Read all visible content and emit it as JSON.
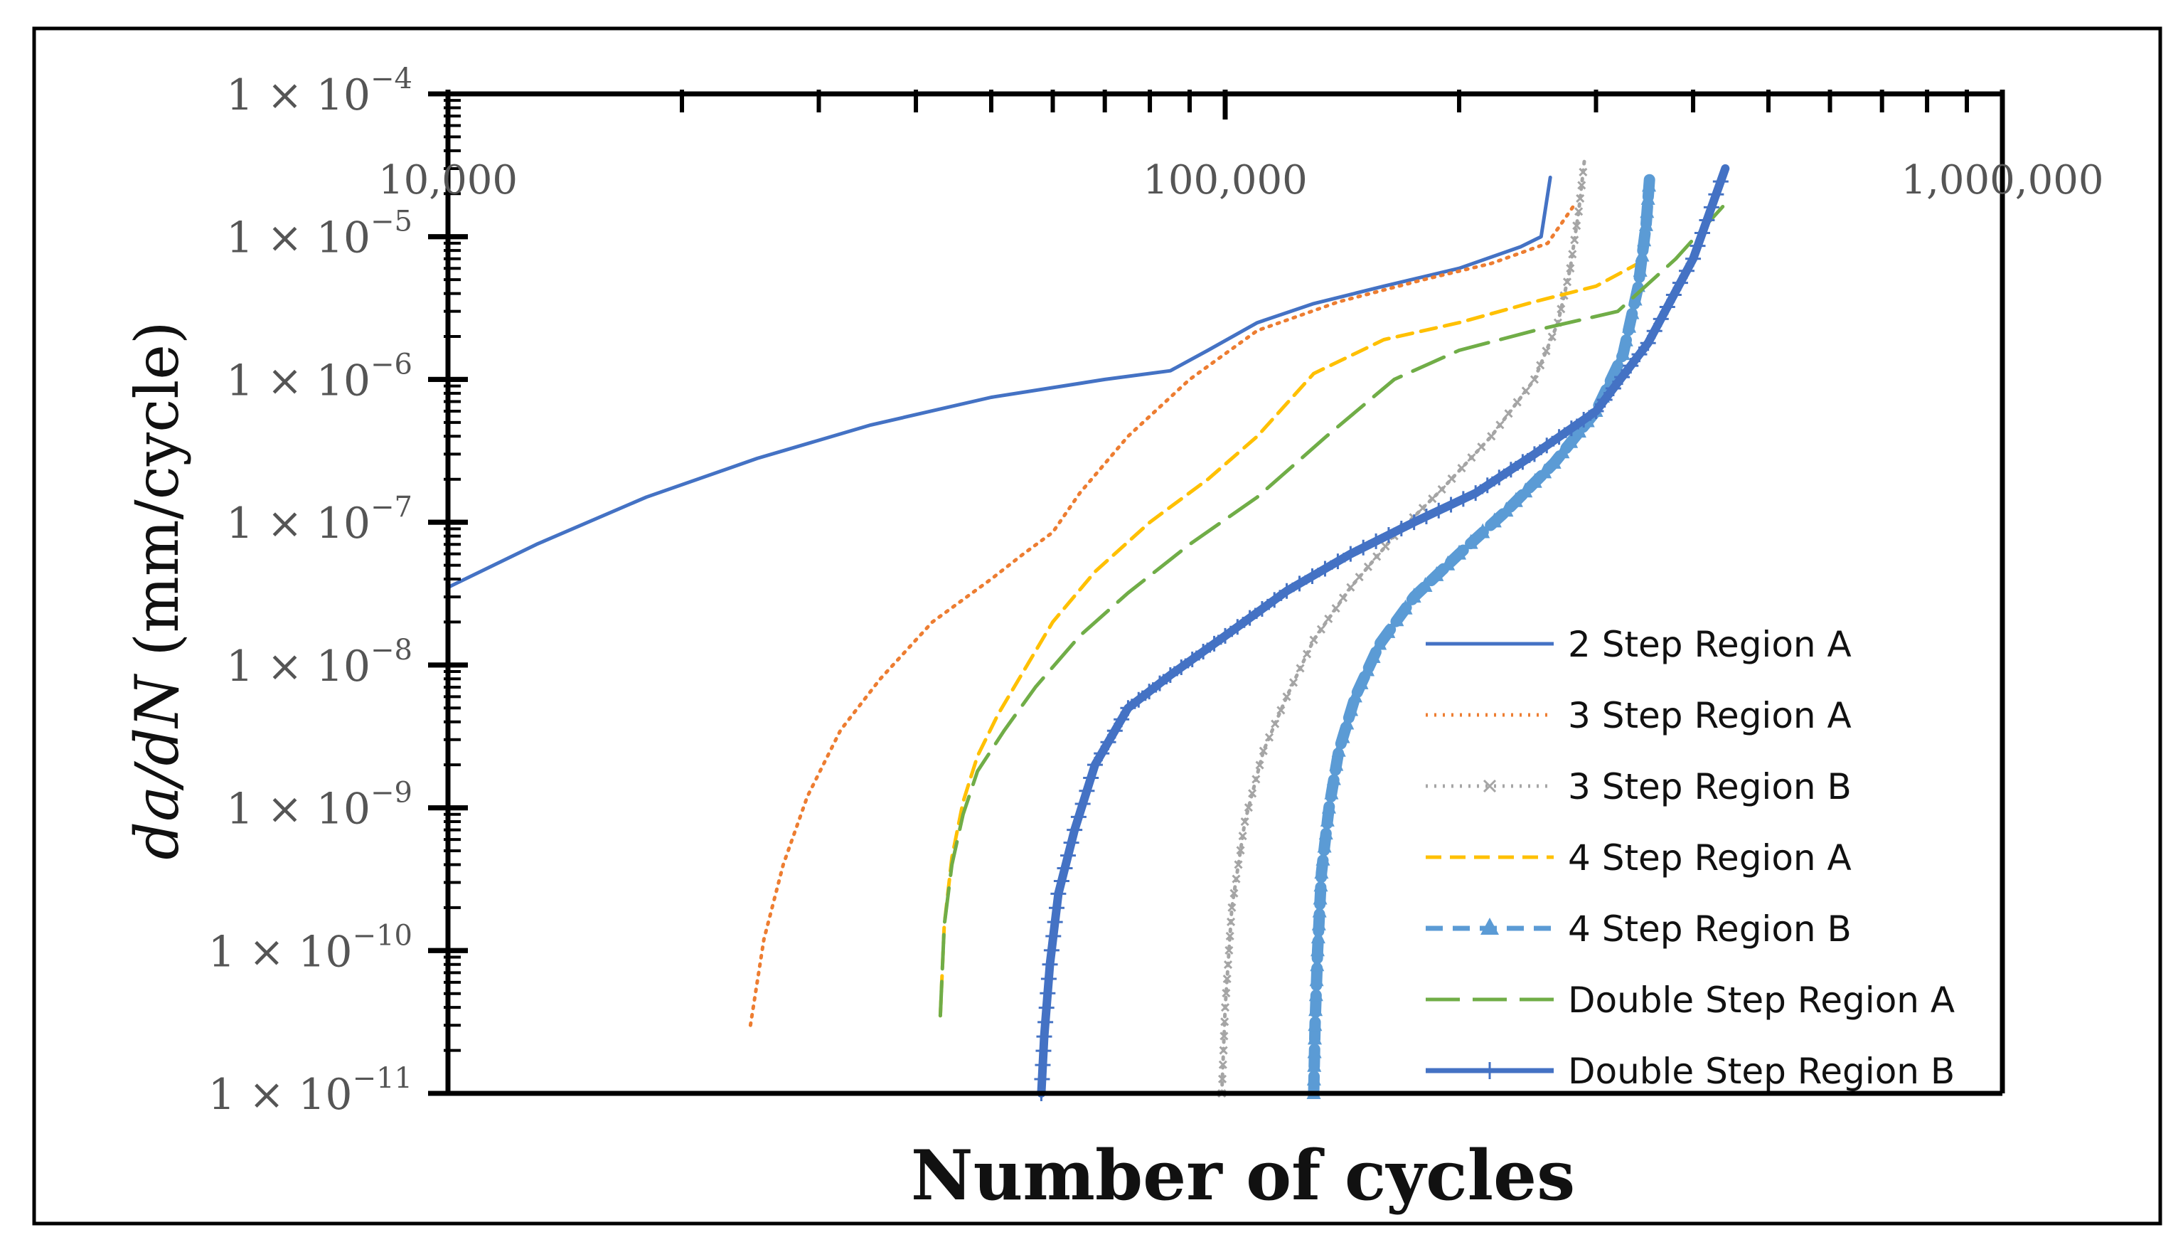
{
  "chart_data": {
    "type": "line",
    "title": "",
    "xlabel": "Number of cycles",
    "ylabel": {
      "italic": "da/dN",
      "units": " (mm/cycle)"
    },
    "xscale": "log",
    "yscale": "log",
    "xlim": [
      10000,
      1000000
    ],
    "ylim": [
      1e-11,
      0.0001
    ],
    "x_tick_labels": [
      {
        "value": 10000,
        "label": "10,000"
      },
      {
        "value": 100000,
        "label": "100,000"
      },
      {
        "value": 1000000,
        "label": "1,000,000"
      }
    ],
    "y_tick_labels": [
      {
        "value": 0.0001,
        "mantissa": "1 × 10",
        "exp": "−4"
      },
      {
        "value": 1e-05,
        "mantissa": "1 × 10",
        "exp": "−5"
      },
      {
        "value": 1e-06,
        "mantissa": "1 × 10",
        "exp": "−6"
      },
      {
        "value": 1e-07,
        "mantissa": "1 × 10",
        "exp": "−7"
      },
      {
        "value": 1e-08,
        "mantissa": "1 × 10",
        "exp": "−8"
      },
      {
        "value": 1e-09,
        "mantissa": "1 × 10",
        "exp": "−9"
      },
      {
        "value": 1e-10,
        "mantissa": "1 × 10",
        "exp": "−10"
      },
      {
        "value": 1e-11,
        "mantissa": "1 × 10",
        "exp": "−11"
      }
    ],
    "legend_position": "bottom-right",
    "series": [
      {
        "name": "2 Step Region A",
        "color": "#4472c4",
        "style": "solid",
        "marker": "none",
        "width": 5,
        "x": [
          10000,
          13000,
          18000,
          25000,
          35000,
          50000,
          70000,
          85000,
          95000,
          110000,
          130000,
          160000,
          200000,
          240000,
          255000,
          262000
        ],
        "y": [
          3.5e-08,
          7e-08,
          1.5e-07,
          2.8e-07,
          4.8e-07,
          7.5e-07,
          1e-06,
          1.15e-06,
          1.6e-06,
          2.5e-06,
          3.4e-06,
          4.5e-06,
          6e-06,
          8.5e-06,
          1e-05,
          2.6e-05
        ]
      },
      {
        "name": "3 Step Region A",
        "color": "#ed7d31",
        "style": "dotted",
        "marker": "none",
        "width": 5,
        "x": [
          24500,
          25500,
          27000,
          29000,
          32000,
          36000,
          42000,
          50000,
          55000,
          60000,
          65000,
          75000,
          90000,
          110000,
          140000,
          180000,
          220000,
          260000,
          282000
        ],
        "y": [
          3e-11,
          1.2e-10,
          4e-10,
          1.2e-09,
          3.5e-09,
          8e-09,
          2e-08,
          4e-08,
          6e-08,
          8.5e-08,
          1.6e-07,
          4e-07,
          1e-06,
          2.2e-06,
          3.5e-06,
          5e-06,
          6.5e-06,
          9e-06,
          1.7e-05
        ]
      },
      {
        "name": "3 Step Region B",
        "color": "#a5a5a5",
        "style": "dotted-x",
        "marker": "x",
        "width": 5,
        "x": [
          99000,
          100000,
          102000,
          106000,
          112000,
          120000,
          130000,
          145000,
          165000,
          190000,
          220000,
          250000,
          268000,
          278000,
          285000,
          290000
        ],
        "y": [
          1e-11,
          4e-11,
          2e-10,
          8e-10,
          2.5e-09,
          6e-09,
          1.5e-08,
          3.5e-08,
          8e-08,
          1.7e-07,
          4e-07,
          1e-06,
          2.5e-06,
          6e-06,
          1.5e-05,
          3.5e-05
        ]
      },
      {
        "name": "4 Step Region A",
        "color": "#ffc000",
        "style": "dashed",
        "marker": "none",
        "width": 5,
        "x": [
          43000,
          43500,
          44500,
          46000,
          48000,
          51000,
          55000,
          60000,
          68000,
          80000,
          95000,
          110000,
          130000,
          160000,
          200000,
          250000,
          300000,
          340000
        ],
        "y": [
          3.5e-11,
          1.5e-10,
          4.5e-10,
          1.1e-09,
          2.3e-09,
          4.5e-09,
          9e-09,
          2e-08,
          4.5e-08,
          1e-07,
          2e-07,
          4e-07,
          1.1e-06,
          1.9e-06,
          2.5e-06,
          3.5e-06,
          4.5e-06,
          6.5e-06
        ]
      },
      {
        "name": "4 Step Region B",
        "color": "#5b9bd5",
        "style": "dashed",
        "marker": "triangle",
        "width": 16,
        "x": [
          130000,
          130500,
          131500,
          133000,
          136000,
          140000,
          147000,
          158000,
          175000,
          200000,
          230000,
          265000,
          300000,
          325000,
          340000,
          348000,
          352000
        ],
        "y": [
          1e-11,
          3e-11,
          1e-10,
          3.5e-10,
          1e-09,
          2.5e-09,
          6e-09,
          1.4e-08,
          3e-08,
          6e-08,
          1.2e-07,
          2.6e-07,
          6e-07,
          1.5e-06,
          4.5e-06,
          1.2e-05,
          2.8e-05
        ]
      },
      {
        "name": "Double Step Region A",
        "color": "#70ad47",
        "style": "long-dashed",
        "marker": "none",
        "width": 5,
        "x": [
          43000,
          43500,
          44500,
          46000,
          48000,
          52000,
          57000,
          65000,
          75000,
          90000,
          110000,
          135000,
          165000,
          200000,
          250000,
          320000,
          380000,
          440000
        ],
        "y": [
          3.5e-11,
          1.5e-10,
          4e-10,
          9e-10,
          1.8e-09,
          3.5e-09,
          7e-09,
          1.6e-08,
          3.2e-08,
          7e-08,
          1.5e-07,
          4e-07,
          1e-06,
          1.6e-06,
          2.2e-06,
          3e-06,
          7e-06,
          1.7e-05
        ]
      },
      {
        "name": "Double Step Region B",
        "color": "#4472c4",
        "style": "solid",
        "marker": "plus",
        "width": 12,
        "x": [
          58000,
          58500,
          59500,
          61000,
          64000,
          68000,
          75000,
          85000,
          100000,
          120000,
          145000,
          175000,
          210000,
          250000,
          300000,
          350000,
          400000,
          440000
        ],
        "y": [
          1e-11,
          2.5e-11,
          8e-11,
          2.5e-10,
          7e-10,
          2e-09,
          5e-09,
          8.5e-09,
          1.6e-08,
          3.3e-08,
          6e-08,
          1e-07,
          1.6e-07,
          3e-07,
          6e-07,
          1.8e-06,
          7e-06,
          3e-05
        ]
      }
    ]
  }
}
